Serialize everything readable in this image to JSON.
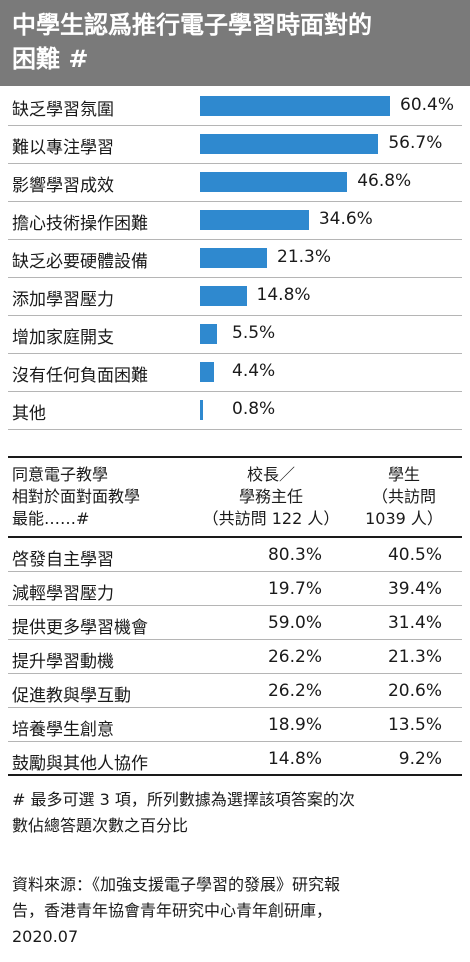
{
  "title": {
    "line1": "中學生認爲推行電子學習時面對的",
    "line2": "困難 #"
  },
  "colors": {
    "bar": "#2f89cf",
    "title_bg": "#7a7a7a"
  },
  "chart_data": {
    "type": "bar",
    "orientation": "horizontal",
    "categories": [
      "缺乏學習氛圍",
      "難以專注學習",
      "影響學習成效",
      "擔心技術操作困難",
      "缺乏必要硬體設備",
      "添加學習壓力",
      "增加家庭開支",
      "沒有任何負面困難",
      "其他"
    ],
    "values": [
      60.4,
      56.7,
      46.8,
      34.6,
      21.3,
      14.8,
      5.5,
      4.4,
      0.8
    ],
    "value_labels": [
      "60.4%",
      "56.7%",
      "46.8%",
      "34.6%",
      "21.3%",
      "14.8%",
      "5.5%",
      "4.4%",
      "0.8%"
    ],
    "xlim": [
      0,
      60.4
    ],
    "grid": false
  },
  "table": {
    "headers": {
      "col1": [
        "同意電子教學",
        "相對於面對面教學",
        "最能……#"
      ],
      "col2": [
        "校長／",
        "學務主任",
        "（共訪問 122 人）"
      ],
      "col3": [
        "學生",
        "（共訪問",
        "1039 人）"
      ]
    },
    "rows": [
      {
        "label": "啓發自主學習",
        "principal": "80.3%",
        "student": "40.5%"
      },
      {
        "label": "減輕學習壓力",
        "principal": "19.7%",
        "student": "39.4%"
      },
      {
        "label": "提供更多學習機會",
        "principal": "59.0%",
        "student": "31.4%"
      },
      {
        "label": "提升學習動機",
        "principal": "26.2%",
        "student": "21.3%"
      },
      {
        "label": "促進教與學互動",
        "principal": "26.2%",
        "student": "20.6%"
      },
      {
        "label": "培養學生創意",
        "principal": "18.9%",
        "student": "13.5%"
      },
      {
        "label": "鼓勵與其他人協作",
        "principal": "14.8%",
        "student": "9.2%"
      }
    ]
  },
  "note": {
    "line1": "# 最多可選 3 項，所列數據為選擇該項答案的次",
    "line2": "數佔總答題次數之百分比"
  },
  "source": {
    "line1": "資料來源：《加強支援電子學習的發展》研究報",
    "line2": "告，香港青年協會青年研究中心青年創研庫，",
    "line3": "2020.07"
  }
}
